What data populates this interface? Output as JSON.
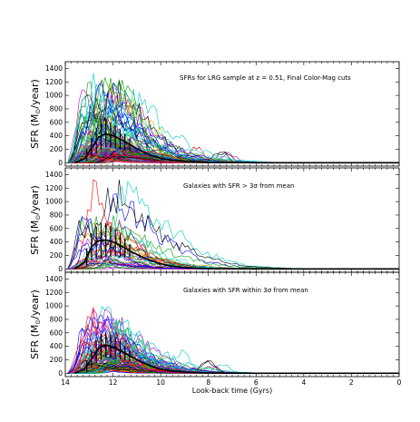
{
  "chart_data": [
    {
      "type": "line",
      "title": "",
      "annotation_prefix": "SFRs for LRG sample at z = 0.51, Final Color-Mag cuts",
      "annotation_sigma": "",
      "annotation_suffix": "",
      "ylabel": "SFR (M",
      "ylabel_sub": "⊙",
      "ylabel_tail": "/year)",
      "xlabel": "",
      "xlim": [
        14,
        0
      ],
      "ylim": [
        -50,
        1500
      ],
      "x_ticks": [
        14,
        12,
        10,
        8,
        6,
        4,
        2,
        0
      ],
      "y_ticks": [
        0,
        200,
        400,
        600,
        800,
        1000,
        1200,
        1400
      ],
      "grid": false,
      "mean_curve": {
        "x": [
          13.6,
          13.2,
          12.9,
          12.6,
          12.3,
          12.0,
          11.6,
          11.2,
          10.8,
          10.4,
          10.0,
          9.5,
          9.0,
          8.5,
          8.0,
          7.0,
          6.0,
          4.0,
          2.0,
          0.0
        ],
        "y": [
          0,
          60,
          220,
          380,
          430,
          400,
          330,
          250,
          170,
          110,
          65,
          35,
          20,
          10,
          5,
          2,
          0,
          0,
          0,
          0
        ]
      },
      "error_x": [
        13.1,
        12.9,
        12.7,
        12.5,
        12.3,
        12.1,
        11.9,
        11.7,
        11.5,
        11.3
      ],
      "error_half": [
        90,
        150,
        190,
        210,
        200,
        190,
        170,
        150,
        120,
        90
      ],
      "n_series": 130,
      "peak_max": 1130,
      "spread": 1.0,
      "seed": 11
    },
    {
      "type": "line",
      "title": "",
      "annotation_prefix": "Galaxies with SFR ",
      "annotation_sigma": " > 3σ",
      "annotation_suffix": " from mean",
      "ylabel": "SFR (M",
      "ylabel_sub": "⊙",
      "ylabel_tail": "/year)",
      "xlabel": "",
      "xlim": [
        14,
        0
      ],
      "ylim": [
        -50,
        1500
      ],
      "x_ticks": [
        14,
        12,
        10,
        8,
        6,
        4,
        2,
        0
      ],
      "y_ticks": [
        0,
        200,
        400,
        600,
        800,
        1000,
        1200,
        1400
      ],
      "grid": false,
      "mean_curve": {
        "x": [
          13.6,
          13.2,
          12.9,
          12.6,
          12.3,
          12.0,
          11.6,
          11.2,
          10.8,
          10.4,
          10.0,
          9.5,
          9.0,
          8.5,
          8.0,
          7.0,
          6.0,
          4.0,
          2.0,
          0.0
        ],
        "y": [
          0,
          100,
          330,
          420,
          430,
          400,
          330,
          250,
          180,
          120,
          75,
          40,
          20,
          10,
          5,
          2,
          0,
          0,
          0,
          0
        ]
      },
      "error_x": [
        13.1,
        12.9,
        12.7,
        12.5,
        12.3,
        12.1,
        11.9,
        11.7,
        11.5,
        11.3
      ],
      "error_half": [
        130,
        200,
        240,
        260,
        250,
        230,
        200,
        170,
        140,
        100
      ],
      "n_series": 40,
      "peak_max": 1160,
      "spread": 1.2,
      "seed": 29
    },
    {
      "type": "line",
      "title": "",
      "annotation_prefix": "Galaxies with SFR within 3σ from mean",
      "annotation_sigma": "",
      "annotation_suffix": "",
      "ylabel": "SFR (M",
      "ylabel_sub": "⊙",
      "ylabel_tail": "/year)",
      "xlabel": "Look-back time (Gyrs)",
      "xlim": [
        14,
        0
      ],
      "ylim": [
        -50,
        1500
      ],
      "x_ticks": [
        14,
        12,
        10,
        8,
        6,
        4,
        2,
        0
      ],
      "y_ticks": [
        0,
        200,
        400,
        600,
        800,
        1000,
        1200,
        1400
      ],
      "grid": false,
      "mean_curve": {
        "x": [
          13.6,
          13.2,
          12.9,
          12.6,
          12.3,
          12.0,
          11.6,
          11.2,
          10.8,
          10.4,
          10.0,
          9.5,
          9.0,
          8.5,
          8.0,
          7.0,
          6.0,
          4.0,
          2.0,
          0.0
        ],
        "y": [
          0,
          60,
          210,
          370,
          420,
          390,
          320,
          240,
          165,
          105,
          60,
          32,
          18,
          9,
          4,
          2,
          0,
          0,
          0,
          0
        ]
      },
      "error_x": [
        13.1,
        12.9,
        12.7,
        12.5,
        12.3,
        12.1,
        11.9,
        11.7,
        11.5,
        11.3
      ],
      "error_half": [
        80,
        130,
        170,
        190,
        185,
        175,
        155,
        135,
        110,
        80
      ],
      "n_series": 110,
      "peak_max": 820,
      "spread": 0.9,
      "seed": 53
    }
  ],
  "colors": [
    "#0000ff",
    "#00a000",
    "#ff0000",
    "#00c8c8",
    "#c800c8",
    "#b4b400",
    "#000000"
  ]
}
